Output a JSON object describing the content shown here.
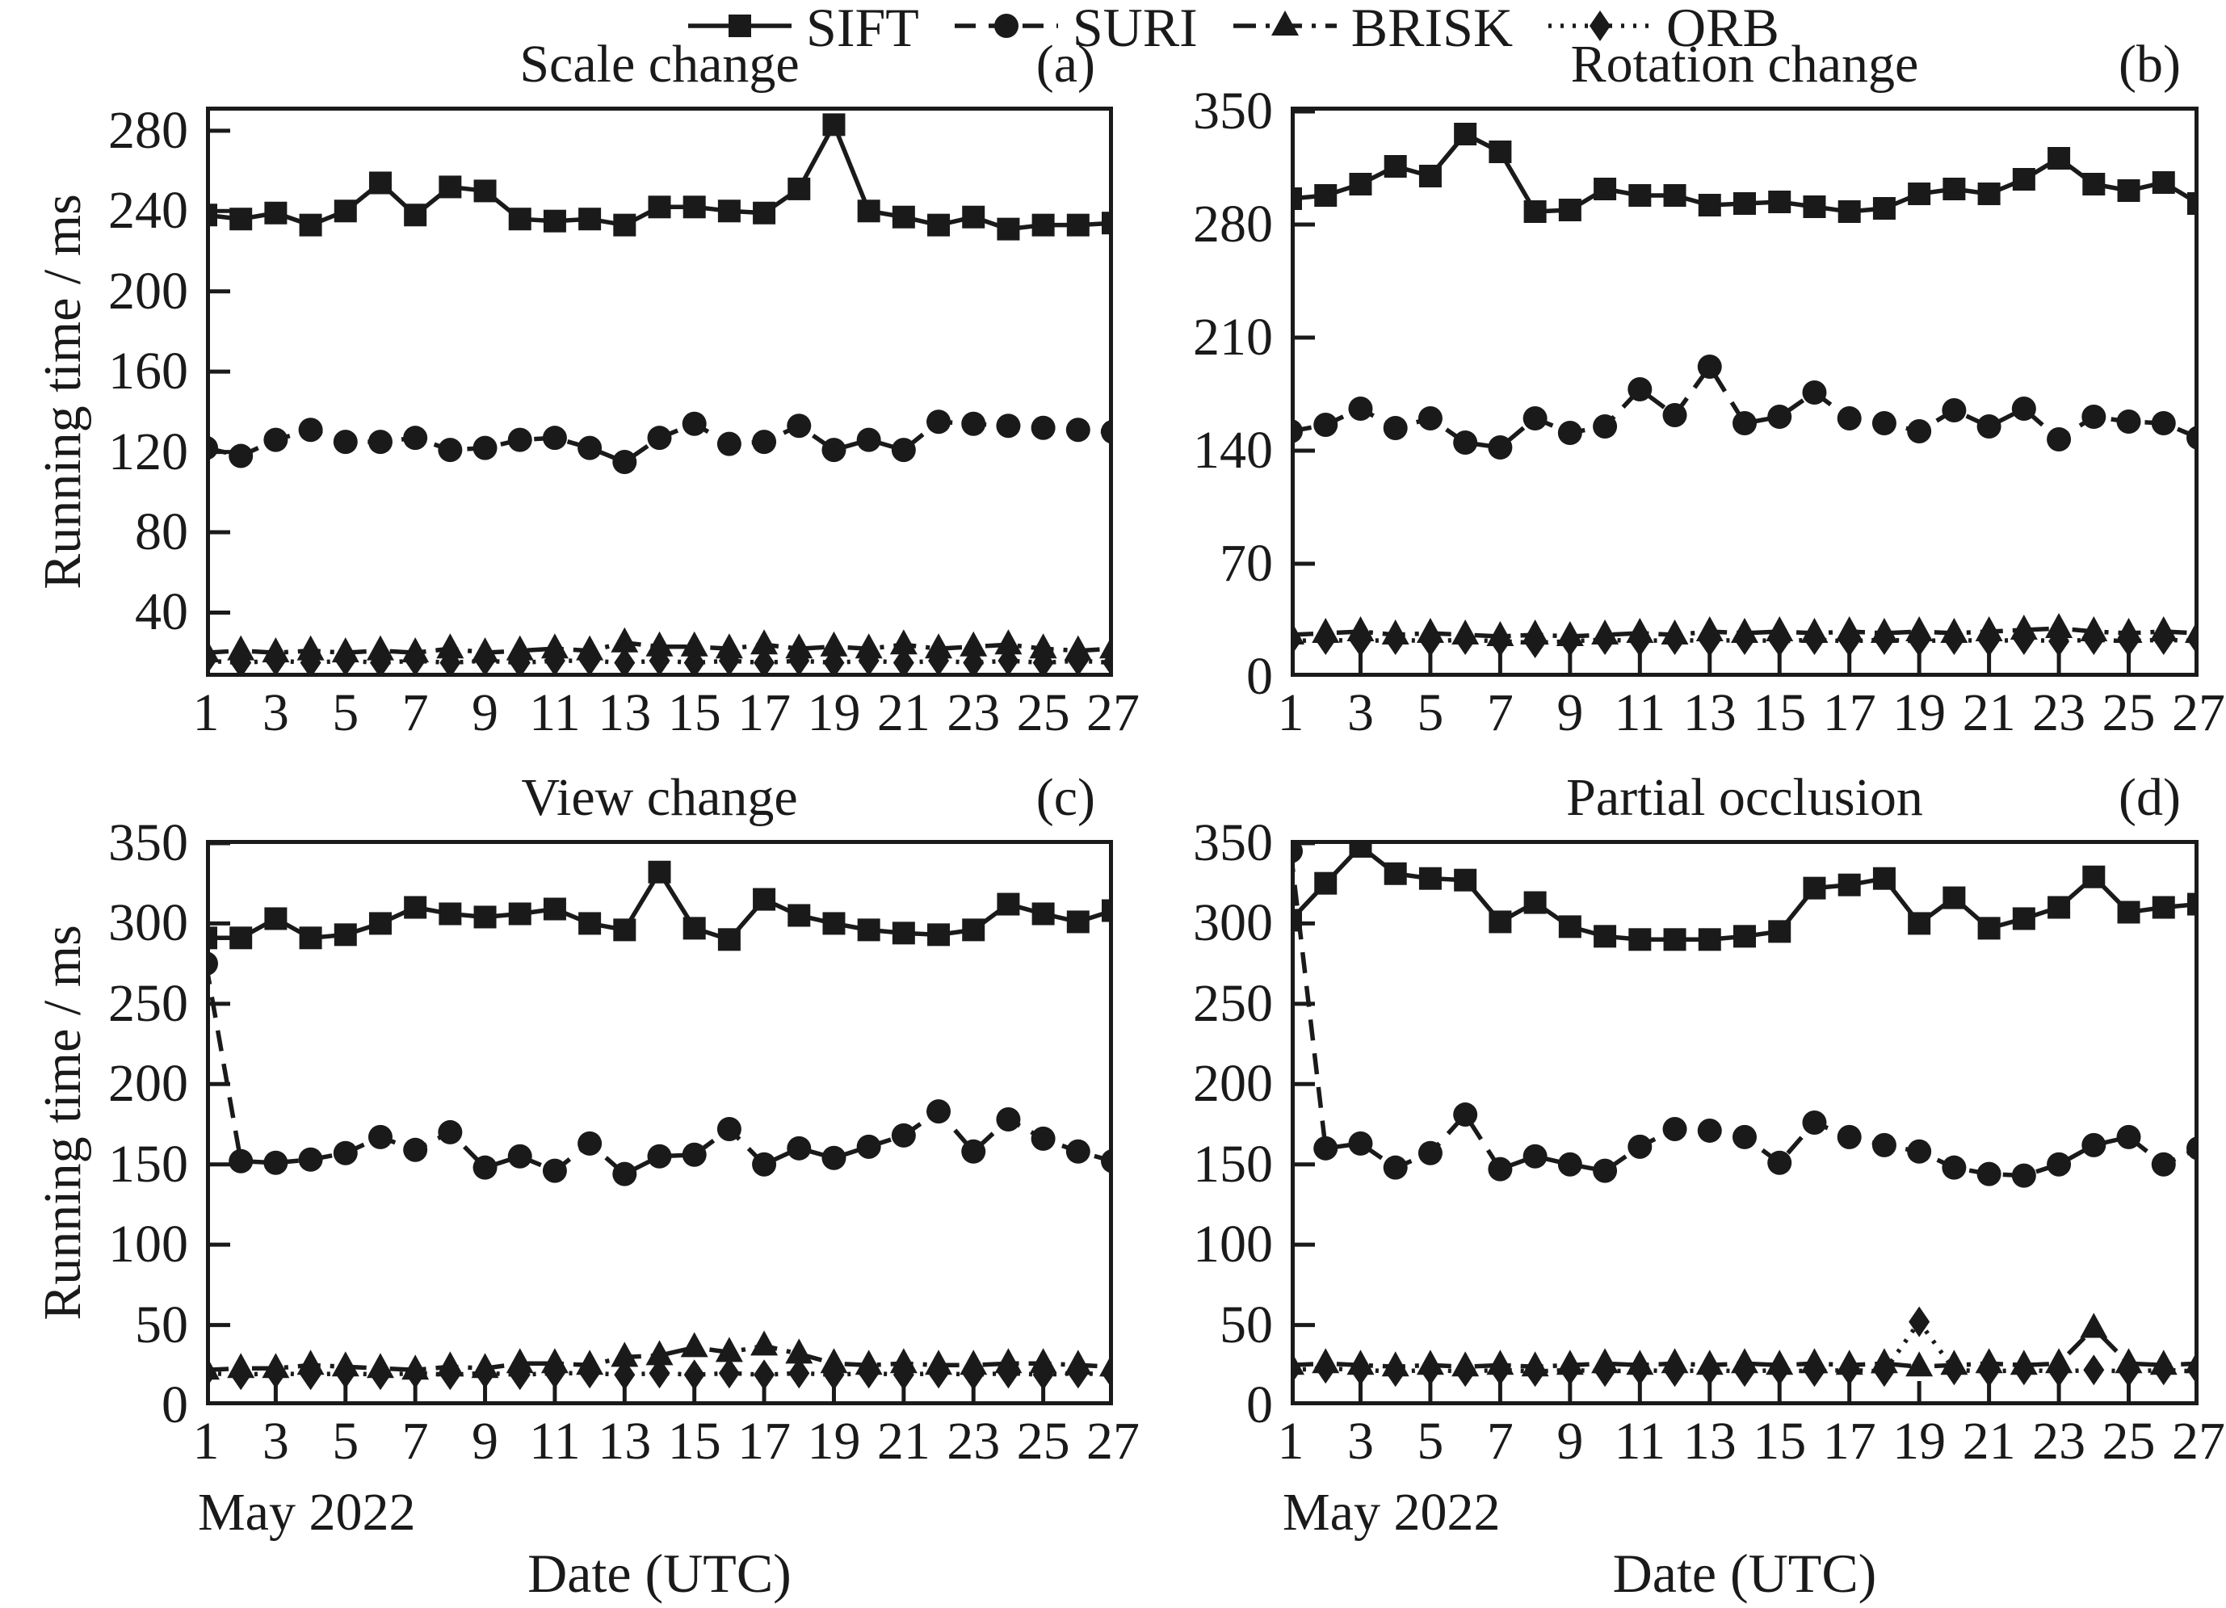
{
  "page": {
    "background": "#ffffff",
    "ink": "#1a1a1a"
  },
  "legend": {
    "items": [
      {
        "label": "SIFT",
        "marker": "square",
        "linestyle": "solid"
      },
      {
        "label": "SURI",
        "marker": "circle",
        "linestyle": "dashed"
      },
      {
        "label": "BRISK",
        "marker": "triangle",
        "linestyle": "dashdot"
      },
      {
        "label": "ORB",
        "marker": "diamond",
        "linestyle": "dotted"
      }
    ]
  },
  "shared": {
    "ylabel": "Running time / ms",
    "xlabel": "Date (UTC)",
    "month_label": "May 2022"
  },
  "chart_data": [
    {
      "type": "line",
      "title": "Scale change",
      "panel_label": "(a)",
      "xlabel": "Date (UTC)",
      "ylabel": "Running time / ms",
      "x": [
        1,
        2,
        3,
        4,
        5,
        6,
        7,
        8,
        9,
        10,
        11,
        12,
        13,
        14,
        15,
        16,
        17,
        18,
        19,
        20,
        21,
        22,
        23,
        24,
        25,
        26,
        27
      ],
      "xticks": [
        1,
        3,
        5,
        7,
        9,
        11,
        13,
        15,
        17,
        19,
        21,
        23,
        25,
        27
      ],
      "ylim": [
        8,
        292
      ],
      "yticks": [
        40,
        80,
        120,
        160,
        200,
        240,
        280
      ],
      "grid": false,
      "legend_position": "top",
      "series": [
        {
          "name": "SIFT",
          "marker": "square",
          "linestyle": "solid",
          "values": [
            238,
            236,
            239,
            233,
            240,
            254,
            238,
            252,
            250,
            236,
            235,
            236,
            233,
            242,
            242,
            240,
            239,
            251,
            283,
            240,
            237,
            233,
            237,
            231,
            233,
            233,
            234
          ]
        },
        {
          "name": "SURI",
          "marker": "circle",
          "linestyle": "dashed",
          "values": [
            122,
            118,
            126,
            131,
            125,
            125,
            127,
            121,
            122,
            126,
            127,
            122,
            115,
            127,
            134,
            124,
            125,
            133,
            121,
            126,
            121,
            135,
            134,
            133,
            132,
            131,
            130
          ]
        },
        {
          "name": "BRISK",
          "marker": "triangle",
          "linestyle": "dashdot",
          "values": [
            20,
            21,
            20,
            21,
            20,
            21,
            20,
            22,
            20,
            21,
            22,
            21,
            25,
            23,
            23,
            22,
            24,
            22,
            23,
            22,
            24,
            22,
            23,
            24,
            22,
            21,
            22
          ]
        },
        {
          "name": "ORB",
          "marker": "diamond",
          "linestyle": "dotted",
          "values": [
            16,
            15,
            16,
            15,
            16,
            15,
            16,
            15,
            16,
            15,
            16,
            16,
            15,
            16,
            15,
            16,
            15,
            16,
            15,
            16,
            15,
            16,
            15,
            16,
            15,
            16,
            15
          ]
        }
      ]
    },
    {
      "type": "line",
      "title": "Rotation change",
      "panel_label": "(b)",
      "xlabel": "Date (UTC)",
      "x": [
        1,
        2,
        3,
        4,
        5,
        6,
        7,
        8,
        9,
        10,
        11,
        12,
        13,
        14,
        15,
        16,
        17,
        18,
        19,
        20,
        21,
        22,
        23,
        24,
        25,
        26,
        27
      ],
      "xticks": [
        1,
        3,
        5,
        7,
        9,
        11,
        13,
        15,
        17,
        19,
        21,
        23,
        25,
        27
      ],
      "ylim": [
        0,
        353
      ],
      "yticks": [
        0,
        70,
        140,
        210,
        280,
        350
      ],
      "grid": false,
      "series": [
        {
          "name": "SIFT",
          "marker": "square",
          "linestyle": "solid",
          "values": [
            296,
            298,
            305,
            316,
            310,
            336,
            325,
            288,
            289,
            302,
            298,
            298,
            292,
            293,
            294,
            291,
            288,
            290,
            299,
            302,
            299,
            308,
            321,
            305,
            301,
            306,
            293
          ]
        },
        {
          "name": "SURI",
          "marker": "circle",
          "linestyle": "dashed",
          "values": [
            152,
            156,
            166,
            154,
            160,
            145,
            142,
            160,
            151,
            155,
            178,
            162,
            192,
            157,
            161,
            176,
            160,
            157,
            152,
            165,
            155,
            166,
            147,
            161,
            158,
            157,
            148
          ]
        },
        {
          "name": "BRISK",
          "marker": "triangle",
          "linestyle": "dashdot",
          "values": [
            26,
            27,
            28,
            26,
            27,
            26,
            25,
            26,
            25,
            26,
            27,
            26,
            28,
            27,
            28,
            27,
            28,
            27,
            28,
            27,
            28,
            29,
            30,
            28,
            27,
            28,
            27
          ]
        },
        {
          "name": "ORB",
          "marker": "diamond",
          "linestyle": "dotted",
          "values": [
            22,
            23,
            22,
            23,
            22,
            23,
            22,
            21,
            22,
            23,
            22,
            23,
            22,
            23,
            22,
            23,
            22,
            23,
            22,
            23,
            22,
            23,
            22,
            23,
            22,
            23,
            22
          ]
        }
      ]
    },
    {
      "type": "line",
      "title": "View change",
      "panel_label": "(c)",
      "xlabel": "Date (UTC)",
      "ylabel": "Running time / ms",
      "month_label": "May 2022",
      "x": [
        1,
        2,
        3,
        4,
        5,
        6,
        7,
        8,
        9,
        10,
        11,
        12,
        13,
        14,
        15,
        16,
        17,
        18,
        19,
        20,
        21,
        22,
        23,
        24,
        25,
        26,
        27
      ],
      "xticks": [
        1,
        3,
        5,
        7,
        9,
        11,
        13,
        15,
        17,
        19,
        21,
        23,
        25,
        27
      ],
      "ylim": [
        0,
        352
      ],
      "yticks": [
        0,
        50,
        100,
        150,
        200,
        250,
        300,
        350
      ],
      "grid": false,
      "series": [
        {
          "name": "SIFT",
          "marker": "square",
          "linestyle": "solid",
          "values": [
            291,
            291,
            303,
            291,
            293,
            300,
            310,
            306,
            304,
            306,
            309,
            300,
            296,
            332,
            297,
            290,
            315,
            305,
            300,
            296,
            294,
            293,
            296,
            312,
            306,
            301,
            308
          ]
        },
        {
          "name": "SURI",
          "marker": "circle",
          "linestyle": "dashed",
          "values": [
            275,
            152,
            151,
            153,
            157,
            167,
            159,
            170,
            148,
            155,
            146,
            163,
            144,
            155,
            156,
            172,
            150,
            160,
            154,
            161,
            168,
            183,
            158,
            178,
            166,
            158,
            152
          ]
        },
        {
          "name": "BRISK",
          "marker": "triangle",
          "linestyle": "dashdot",
          "values": [
            22,
            23,
            23,
            25,
            24,
            23,
            22,
            24,
            23,
            26,
            26,
            25,
            30,
            31,
            36,
            33,
            37,
            32,
            26,
            25,
            26,
            25,
            25,
            26,
            26,
            25,
            24
          ]
        },
        {
          "name": "ORB",
          "marker": "diamond",
          "linestyle": "dotted",
          "values": [
            20,
            19,
            20,
            19,
            20,
            19,
            20,
            19,
            20,
            19,
            20,
            20,
            19,
            20,
            19,
            20,
            19,
            20,
            19,
            20,
            19,
            20,
            19,
            20,
            19,
            20,
            19
          ]
        }
      ]
    },
    {
      "type": "line",
      "title": "Partial occlusion",
      "panel_label": "(d)",
      "xlabel": "Date (UTC)",
      "month_label": "May 2022",
      "x": [
        1,
        2,
        3,
        4,
        5,
        6,
        7,
        8,
        9,
        10,
        11,
        12,
        13,
        14,
        15,
        16,
        17,
        18,
        19,
        20,
        21,
        22,
        23,
        24,
        25,
        26,
        27
      ],
      "xticks": [
        1,
        3,
        5,
        7,
        9,
        11,
        13,
        15,
        17,
        19,
        21,
        23,
        25,
        27
      ],
      "ylim": [
        0,
        352
      ],
      "yticks": [
        0,
        50,
        100,
        150,
        200,
        250,
        300,
        350
      ],
      "grid": false,
      "series": [
        {
          "name": "SIFT",
          "marker": "square",
          "linestyle": "solid",
          "values": [
            302,
            325,
            348,
            331,
            328,
            327,
            301,
            313,
            298,
            292,
            290,
            290,
            290,
            292,
            295,
            322,
            324,
            328,
            300,
            316,
            297,
            303,
            310,
            329,
            307,
            310,
            312
          ]
        },
        {
          "name": "SURI",
          "marker": "circle",
          "linestyle": "dashed",
          "values": [
            345,
            160,
            163,
            148,
            157,
            181,
            147,
            155,
            150,
            146,
            161,
            172,
            171,
            167,
            151,
            176,
            167,
            162,
            158,
            148,
            144,
            143,
            150,
            162,
            167,
            150,
            160
          ]
        },
        {
          "name": "BRISK",
          "marker": "triangle",
          "linestyle": "dashdot",
          "values": [
            25,
            26,
            25,
            24,
            25,
            24,
            25,
            24,
            25,
            26,
            25,
            26,
            25,
            26,
            25,
            26,
            25,
            26,
            24,
            25,
            26,
            25,
            26,
            48,
            26,
            25,
            26
          ]
        },
        {
          "name": "ORB",
          "marker": "diamond",
          "linestyle": "dotted",
          "values": [
            22,
            23,
            22,
            21,
            22,
            21,
            22,
            21,
            22,
            21,
            22,
            21,
            22,
            21,
            22,
            21,
            22,
            21,
            52,
            22,
            21,
            22,
            21,
            22,
            21,
            22,
            21
          ]
        }
      ]
    }
  ]
}
